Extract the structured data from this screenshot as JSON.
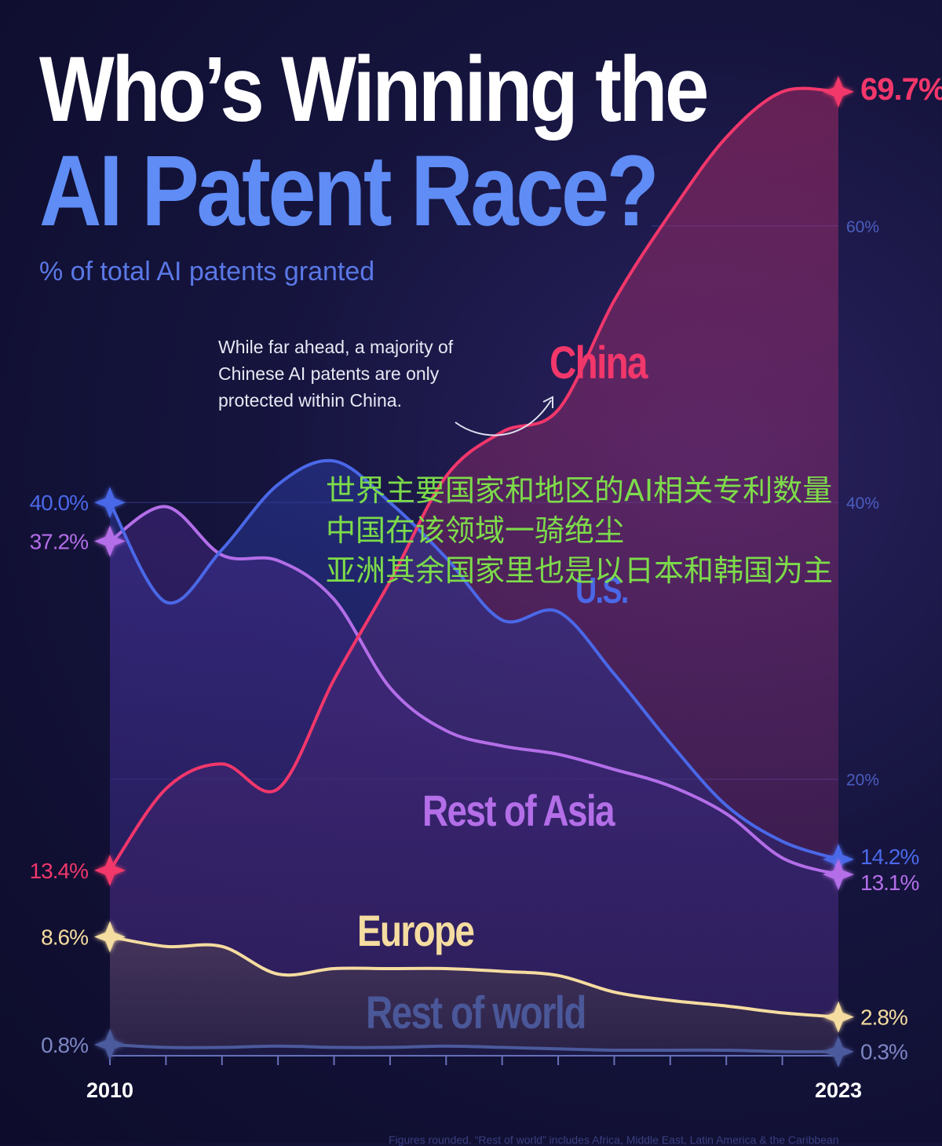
{
  "title": {
    "line1": "Who’s Winning the",
    "line2": "AI Patent Race?"
  },
  "subtitle": "% of total AI patents granted",
  "annotation": [
    "While far ahead, a majority of",
    "Chinese AI patents are only",
    "protected within China."
  ],
  "overlay_text": [
    "世界主要国家和地区的AI相关专利数量",
    "中国在该领域一骑绝尘",
    "亚洲其余国家里也是以日本和韩国为主"
  ],
  "footnote": "Figures rounded. “Rest of world” includes Africa, Middle East, Latin America & the Caribbean",
  "chart_data": {
    "type": "area",
    "title": "Who’s Winning the AI Patent Race?",
    "ylabel": "% of total AI patents granted",
    "x": [
      2010,
      2011,
      2012,
      2013,
      2014,
      2015,
      2016,
      2017,
      2018,
      2019,
      2020,
      2021,
      2022,
      2023
    ],
    "x_tick_labels": [
      "2010",
      "2023"
    ],
    "ylim": [
      0,
      72
    ],
    "y_gridlines": [
      20,
      40,
      60
    ],
    "y_tick_labels": [
      "20%",
      "40%",
      "60%"
    ],
    "series": [
      {
        "name": "China",
        "color": "#f2376b",
        "start_label": "13.4%",
        "end_label": "69.7%",
        "values": [
          13.4,
          19.3,
          21.1,
          19.3,
          27.2,
          34.3,
          41.9,
          45.1,
          46.7,
          54.6,
          60.9,
          66.4,
          69.7,
          69.7
        ]
      },
      {
        "name": "U.S.",
        "color": "#4a68e8",
        "start_label": "40.0%",
        "end_label": "14.2%",
        "values": [
          40.0,
          32.8,
          36.6,
          41.3,
          43.0,
          40.0,
          36.0,
          31.5,
          32.1,
          27.6,
          22.6,
          18.1,
          15.5,
          14.2
        ]
      },
      {
        "name": "Rest of Asia",
        "color": "#b36ee8",
        "start_label": "37.2%",
        "end_label": "13.1%",
        "values": [
          37.2,
          39.7,
          36.2,
          35.8,
          33.0,
          26.6,
          23.5,
          22.4,
          21.8,
          20.7,
          19.5,
          17.5,
          14.3,
          13.1
        ]
      },
      {
        "name": "Europe",
        "color": "#f5dca0",
        "start_label": "8.6%",
        "end_label": "2.8%",
        "values": [
          8.6,
          7.9,
          7.9,
          5.9,
          6.3,
          6.3,
          6.3,
          6.1,
          5.8,
          4.6,
          4.0,
          3.6,
          3.1,
          2.8
        ]
      },
      {
        "name": "Rest of world",
        "color": "#4b5a9c",
        "start_label": "0.8%",
        "end_label": "0.3%",
        "values": [
          0.8,
          0.6,
          0.6,
          0.7,
          0.6,
          0.6,
          0.7,
          0.6,
          0.5,
          0.4,
          0.4,
          0.4,
          0.3,
          0.3
        ]
      }
    ]
  },
  "colors": {
    "background": "#15143d",
    "title_primary": "#ffffff",
    "title_accent": "#5f8cf5",
    "gridline": "#3a3f8f",
    "axis": "#6670b8",
    "overlay": "#7ddc4a"
  }
}
